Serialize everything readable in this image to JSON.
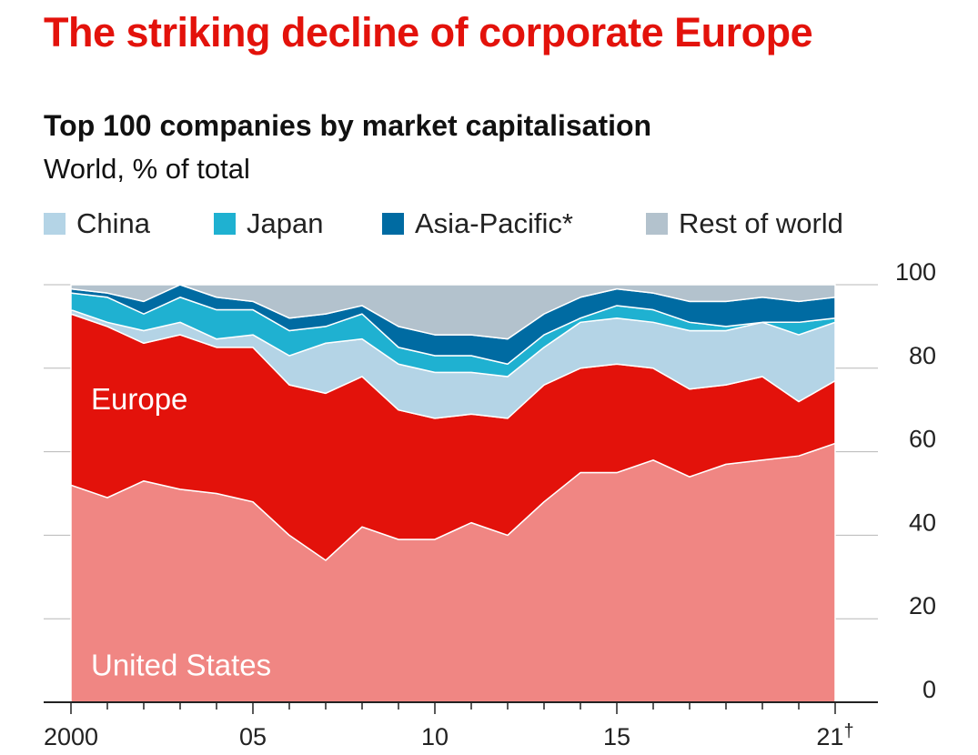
{
  "title": "The striking decline of corporate Europe",
  "subtitle": "Top 100 companies by market capitalisation",
  "unit": "World, % of total",
  "chart_data": {
    "type": "area",
    "stacked": true,
    "x": [
      2000,
      2001,
      2002,
      2003,
      2004,
      2005,
      2006,
      2007,
      2008,
      2009,
      2010,
      2011,
      2012,
      2013,
      2014,
      2015,
      2016,
      2017,
      2018,
      2019,
      2020,
      2021
    ],
    "ylim": [
      0,
      100
    ],
    "yticks": [
      0,
      20,
      40,
      60,
      80,
      100
    ],
    "xticks": [
      {
        "value": 2000,
        "label": "2000"
      },
      {
        "value": 2005,
        "label": "05"
      },
      {
        "value": 2010,
        "label": "10"
      },
      {
        "value": 2015,
        "label": "15"
      },
      {
        "value": 2021,
        "label": "21",
        "marker": "†"
      }
    ],
    "grid": true,
    "legend_placement": "top",
    "series": [
      {
        "name": "United States",
        "color": "#f08683",
        "values": [
          52,
          49,
          53,
          51,
          50,
          48,
          40,
          34,
          42,
          39,
          39,
          43,
          40,
          48,
          55,
          55,
          58,
          54,
          57,
          58,
          59,
          62
        ],
        "label_in_chart": true
      },
      {
        "name": "Europe",
        "color": "#e3120b",
        "values": [
          41,
          41,
          33,
          37,
          35,
          37,
          36,
          40,
          36,
          31,
          29,
          26,
          28,
          28,
          25,
          26,
          22,
          21,
          19,
          20,
          13,
          15
        ],
        "label_in_chart": true
      },
      {
        "name": "China",
        "color": "#b4d4e6",
        "values": [
          1,
          1,
          3,
          3,
          2,
          3,
          7,
          12,
          9,
          11,
          11,
          10,
          10,
          9,
          11,
          11,
          11,
          14,
          13,
          13,
          16,
          14
        ],
        "in_legend": true
      },
      {
        "name": "Japan",
        "color": "#1fb1d1",
        "values": [
          4,
          6,
          4,
          6,
          7,
          6,
          6,
          4,
          6,
          4,
          4,
          4,
          3,
          3,
          1,
          3,
          3,
          2,
          1,
          0,
          3,
          1
        ],
        "in_legend": true
      },
      {
        "name": "Asia-Pacific*",
        "color": "#006ba2",
        "values": [
          1,
          1,
          3,
          3,
          3,
          2,
          3,
          3,
          2,
          5,
          5,
          5,
          6,
          5,
          5,
          4,
          4,
          5,
          6,
          6,
          5,
          5
        ],
        "in_legend": true
      },
      {
        "name": "Rest of world",
        "color": "#b3c2cd",
        "values": [
          1,
          2,
          4,
          0,
          3,
          4,
          8,
          7,
          5,
          10,
          12,
          12,
          13,
          7,
          3,
          1,
          2,
          4,
          4,
          3,
          4,
          3
        ],
        "in_legend": true
      }
    ]
  }
}
